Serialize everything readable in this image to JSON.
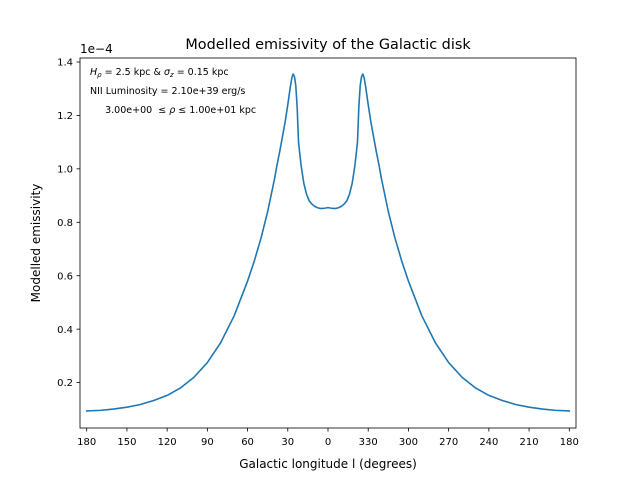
{
  "chart_data": {
    "type": "line",
    "title": "Modelled emissivity of the Galactic disk",
    "xlabel": "Galactic longitude l (degrees)",
    "ylabel": "Modelled emissivity",
    "y_scale_label": "1e−4",
    "y_multiplier": 0.0001,
    "xticks": [
      "180",
      "150",
      "120",
      "90",
      "60",
      "30",
      "0",
      "330",
      "300",
      "270",
      "240",
      "210",
      "180"
    ],
    "yticks": [
      "0.2",
      "0.4",
      "0.6",
      "0.8",
      "1.0",
      "1.2",
      "1.4"
    ],
    "xlim": [
      -185,
      185
    ],
    "ylim": [
      0.03,
      1.415
    ],
    "grid": false,
    "annotations": [
      {
        "id": "scale",
        "prefix": "H",
        "prefix_sub": "ρ",
        "mid": " = 2.5 kpc & ",
        "sym": "σ",
        "sym_sub": "z",
        "suffix": " = 0.15 kpc"
      },
      {
        "id": "lum",
        "text": "NII Luminosity = 2.10e+39 erg/s"
      },
      {
        "id": "range",
        "lo": "3.00e+00",
        "rel1": "≤",
        "var": "ρ",
        "rel2": "≤",
        "hi": "1.00e+01 kpc"
      }
    ],
    "line_color": "#1f77b4",
    "series": [
      {
        "x": [
          -180,
          -170,
          -160,
          -150,
          -140,
          -130,
          -120,
          -110,
          -100,
          -90,
          -80,
          -70,
          -60,
          -55,
          -50,
          -45,
          -40,
          -38,
          -36,
          -34,
          -32,
          -30,
          -28,
          -27,
          -26,
          -25,
          -24,
          -23,
          -22,
          -20,
          -18,
          -16,
          -14,
          -12,
          -10,
          -8,
          -6,
          -4,
          -2,
          0,
          2,
          4,
          6,
          8,
          10,
          12,
          14,
          16,
          18,
          20,
          22,
          23,
          24,
          25,
          26,
          27,
          28,
          30,
          32,
          34,
          36,
          38,
          40,
          45,
          50,
          55,
          60,
          70,
          80,
          90,
          100,
          110,
          120,
          130,
          140,
          150,
          160,
          170,
          180
        ],
        "y": [
          0.094,
          0.096,
          0.101,
          0.108,
          0.118,
          0.133,
          0.152,
          0.18,
          0.22,
          0.275,
          0.35,
          0.45,
          0.58,
          0.655,
          0.74,
          0.84,
          0.96,
          1.015,
          1.065,
          1.12,
          1.175,
          1.24,
          1.31,
          1.34,
          1.355,
          1.345,
          1.31,
          1.23,
          1.1,
          1.01,
          0.945,
          0.905,
          0.88,
          0.868,
          0.86,
          0.855,
          0.852,
          0.852,
          0.853,
          0.855,
          0.853,
          0.852,
          0.852,
          0.855,
          0.86,
          0.868,
          0.88,
          0.905,
          0.945,
          1.01,
          1.1,
          1.23,
          1.31,
          1.345,
          1.355,
          1.34,
          1.31,
          1.24,
          1.175,
          1.12,
          1.065,
          1.015,
          0.96,
          0.84,
          0.74,
          0.655,
          0.58,
          0.45,
          0.35,
          0.275,
          0.22,
          0.18,
          0.152,
          0.133,
          0.118,
          0.108,
          0.101,
          0.096,
          0.094
        ]
      }
    ]
  }
}
